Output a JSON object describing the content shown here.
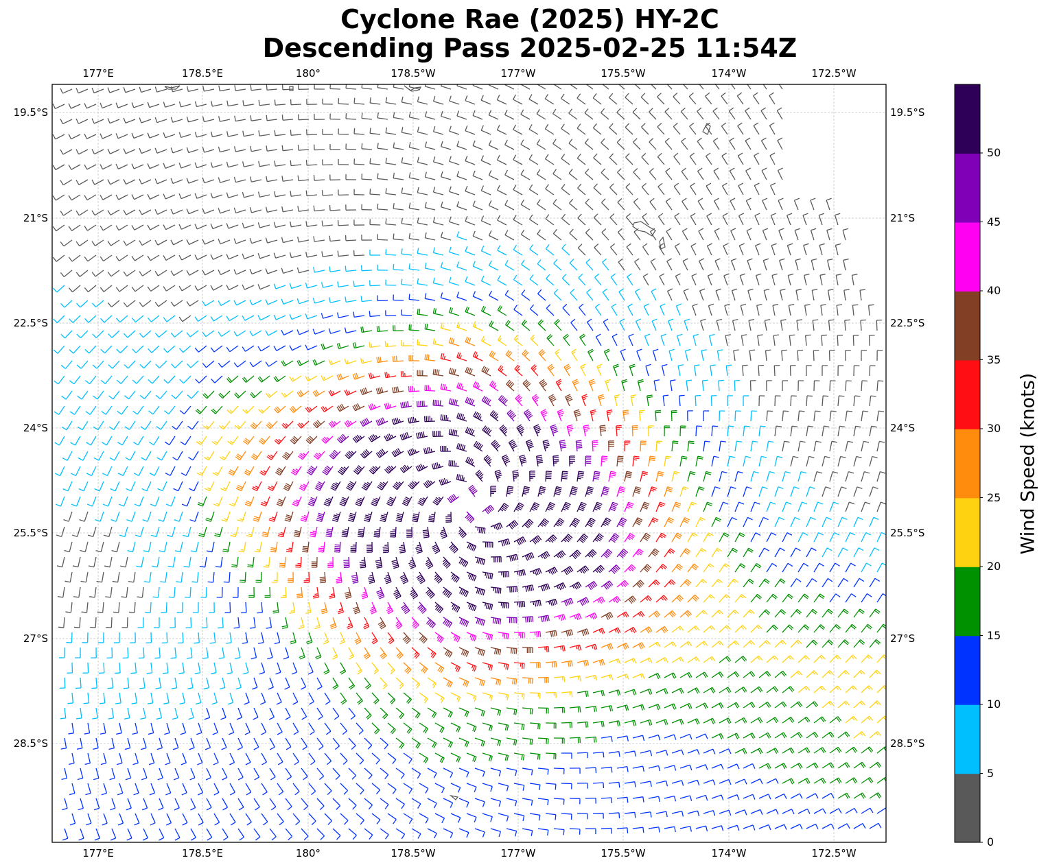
{
  "title": {
    "line1": "Cyclone Rae (2025) HY-2C",
    "line2": "Descending Pass 2025-02-25 11:54Z"
  },
  "map": {
    "lon_labels": [
      "177°E",
      "178.5°E",
      "180°",
      "178.5°W",
      "177°W",
      "175.5°W",
      "174°W",
      "172.5°W"
    ],
    "lat_labels": [
      "19.5°S",
      "21°S",
      "22.5°S",
      "24°S",
      "25.5°S",
      "27°S",
      "28.5°S"
    ],
    "gridlines": "dashed-gray",
    "barb_field": "wind-barbs",
    "storm_center": {
      "lat": -25.1,
      "lon": -177.8
    }
  },
  "colorbar": {
    "label": "Wind Speed (knots)",
    "ticks": [
      "0",
      "5",
      "10",
      "15",
      "20",
      "25",
      "30",
      "35",
      "40",
      "45",
      "50"
    ],
    "colors": [
      "#595959",
      "#00bfff",
      "#0033ff",
      "#009100",
      "#ffd211",
      "#ff8c0d",
      "#ff0f13",
      "#823f26",
      "#ff00f2",
      "#8000b8",
      "#2e0057"
    ]
  }
}
